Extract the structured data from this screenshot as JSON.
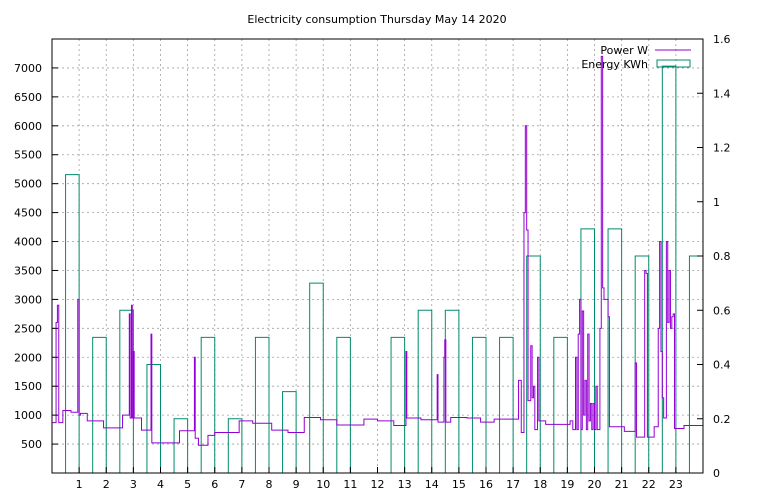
{
  "chart_data": {
    "type": "line",
    "title": "Electricity consumption Thursday May 14 2020",
    "xlabel": "",
    "ylabel": "",
    "y2label": "",
    "xlim": [
      0,
      24
    ],
    "ylim": [
      0,
      7500
    ],
    "y2lim": [
      0,
      1.6
    ],
    "x_ticks": [
      1,
      2,
      3,
      4,
      5,
      6,
      7,
      8,
      9,
      10,
      11,
      12,
      13,
      14,
      15,
      16,
      17,
      18,
      19,
      20,
      21,
      22,
      23
    ],
    "y_ticks": [
      500,
      1000,
      1500,
      2000,
      2500,
      3000,
      3500,
      4000,
      4500,
      5000,
      5500,
      6000,
      6500,
      7000
    ],
    "y2_ticks": [
      0,
      0.2,
      0.4,
      0.6,
      0.8,
      1,
      1.2,
      1.4,
      1.6
    ],
    "grid": true,
    "legend_position": "top-right",
    "series": [
      {
        "name": "Power W",
        "color": "#9400d3",
        "axis": "left",
        "points": [
          [
            0,
            870
          ],
          [
            0.15,
            870
          ],
          [
            0.15,
            2600
          ],
          [
            0.2,
            2600
          ],
          [
            0.2,
            2900
          ],
          [
            0.25,
            2900
          ],
          [
            0.25,
            870
          ],
          [
            0.4,
            870
          ],
          [
            0.4,
            1080
          ],
          [
            0.7,
            1080
          ],
          [
            0.7,
            1050
          ],
          [
            0.95,
            1050
          ],
          [
            0.95,
            3000
          ],
          [
            1.0,
            3000
          ],
          [
            1.0,
            1000
          ],
          [
            1.05,
            1000
          ],
          [
            1.05,
            1030
          ],
          [
            1.3,
            1030
          ],
          [
            1.3,
            900
          ],
          [
            1.9,
            900
          ],
          [
            1.9,
            780
          ],
          [
            2.6,
            780
          ],
          [
            2.6,
            1000
          ],
          [
            2.85,
            1000
          ],
          [
            2.85,
            2750
          ],
          [
            2.88,
            2750
          ],
          [
            2.88,
            950
          ],
          [
            2.93,
            950
          ],
          [
            2.93,
            2900
          ],
          [
            2.96,
            2900
          ],
          [
            2.96,
            950
          ],
          [
            3.0,
            950
          ],
          [
            3.0,
            2100
          ],
          [
            3.03,
            2100
          ],
          [
            3.03,
            950
          ],
          [
            3.3,
            950
          ],
          [
            3.3,
            740
          ],
          [
            3.65,
            740
          ],
          [
            3.65,
            2400
          ],
          [
            3.68,
            2400
          ],
          [
            3.68,
            520
          ],
          [
            4.7,
            520
          ],
          [
            4.7,
            730
          ],
          [
            5.25,
            730
          ],
          [
            5.25,
            2000
          ],
          [
            5.28,
            2000
          ],
          [
            5.28,
            600
          ],
          [
            5.4,
            600
          ],
          [
            5.4,
            480
          ],
          [
            5.75,
            480
          ],
          [
            5.75,
            650
          ],
          [
            6.0,
            650
          ],
          [
            6.0,
            700
          ],
          [
            6.9,
            700
          ],
          [
            6.9,
            900
          ],
          [
            7.4,
            900
          ],
          [
            7.4,
            860
          ],
          [
            8.1,
            860
          ],
          [
            8.1,
            740
          ],
          [
            8.7,
            740
          ],
          [
            8.7,
            700
          ],
          [
            9.3,
            700
          ],
          [
            9.3,
            960
          ],
          [
            9.9,
            960
          ],
          [
            9.9,
            920
          ],
          [
            10.5,
            920
          ],
          [
            10.5,
            830
          ],
          [
            11.5,
            830
          ],
          [
            11.5,
            930
          ],
          [
            12.0,
            930
          ],
          [
            12.0,
            900
          ],
          [
            12.6,
            900
          ],
          [
            12.6,
            820
          ],
          [
            13.05,
            820
          ],
          [
            13.05,
            2100
          ],
          [
            13.08,
            2100
          ],
          [
            13.08,
            950
          ],
          [
            13.6,
            950
          ],
          [
            13.6,
            920
          ],
          [
            14.2,
            920
          ],
          [
            14.2,
            1700
          ],
          [
            14.23,
            1700
          ],
          [
            14.23,
            880
          ],
          [
            14.45,
            880
          ],
          [
            14.45,
            2000
          ],
          [
            14.48,
            2000
          ],
          [
            14.48,
            2300
          ],
          [
            14.52,
            2300
          ],
          [
            14.52,
            880
          ],
          [
            14.7,
            880
          ],
          [
            14.7,
            960
          ],
          [
            15.3,
            960
          ],
          [
            15.3,
            950
          ],
          [
            15.8,
            950
          ],
          [
            15.8,
            880
          ],
          [
            16.3,
            880
          ],
          [
            16.3,
            930
          ],
          [
            17.2,
            930
          ],
          [
            17.2,
            1600
          ],
          [
            17.3,
            1600
          ],
          [
            17.3,
            700
          ],
          [
            17.4,
            700
          ],
          [
            17.4,
            4500
          ],
          [
            17.45,
            4500
          ],
          [
            17.45,
            6000
          ],
          [
            17.5,
            6000
          ],
          [
            17.5,
            4200
          ],
          [
            17.55,
            4200
          ],
          [
            17.55,
            1250
          ],
          [
            17.65,
            1250
          ],
          [
            17.65,
            2200
          ],
          [
            17.7,
            2200
          ],
          [
            17.7,
            1300
          ],
          [
            17.75,
            1300
          ],
          [
            17.75,
            1500
          ],
          [
            17.8,
            1500
          ],
          [
            17.8,
            750
          ],
          [
            17.9,
            750
          ],
          [
            17.9,
            2000
          ],
          [
            17.95,
            2000
          ],
          [
            17.95,
            900
          ],
          [
            18.2,
            900
          ],
          [
            18.2,
            840
          ],
          [
            19.1,
            840
          ],
          [
            19.1,
            900
          ],
          [
            19.2,
            900
          ],
          [
            19.2,
            750
          ],
          [
            19.3,
            750
          ],
          [
            19.3,
            2000
          ],
          [
            19.35,
            2000
          ],
          [
            19.35,
            750
          ],
          [
            19.4,
            750
          ],
          [
            19.4,
            2400
          ],
          [
            19.45,
            2400
          ],
          [
            19.45,
            3000
          ],
          [
            19.5,
            3000
          ],
          [
            19.5,
            750
          ],
          [
            19.55,
            750
          ],
          [
            19.55,
            2800
          ],
          [
            19.6,
            2800
          ],
          [
            19.6,
            1000
          ],
          [
            19.65,
            1000
          ],
          [
            19.65,
            1600
          ],
          [
            19.7,
            1600
          ],
          [
            19.7,
            750
          ],
          [
            19.75,
            750
          ],
          [
            19.75,
            2400
          ],
          [
            19.8,
            2400
          ],
          [
            19.8,
            900
          ],
          [
            19.85,
            900
          ],
          [
            19.85,
            1200
          ],
          [
            19.9,
            1200
          ],
          [
            19.9,
            750
          ],
          [
            19.95,
            750
          ],
          [
            19.95,
            1200
          ],
          [
            20.0,
            1200
          ],
          [
            20.0,
            750
          ],
          [
            20.05,
            750
          ],
          [
            20.05,
            1500
          ],
          [
            20.1,
            1500
          ],
          [
            20.1,
            750
          ],
          [
            20.2,
            750
          ],
          [
            20.2,
            2500
          ],
          [
            20.25,
            2500
          ],
          [
            20.25,
            7200
          ],
          [
            20.3,
            7200
          ],
          [
            20.3,
            3200
          ],
          [
            20.35,
            3200
          ],
          [
            20.35,
            3000
          ],
          [
            20.5,
            3000
          ],
          [
            20.5,
            2700
          ],
          [
            20.55,
            2700
          ],
          [
            20.55,
            800
          ],
          [
            21.1,
            800
          ],
          [
            21.1,
            720
          ],
          [
            21.5,
            720
          ],
          [
            21.5,
            1900
          ],
          [
            21.55,
            1900
          ],
          [
            21.55,
            620
          ],
          [
            21.85,
            620
          ],
          [
            21.85,
            3500
          ],
          [
            21.9,
            3500
          ],
          [
            21.9,
            3450
          ],
          [
            21.95,
            3450
          ],
          [
            21.95,
            620
          ],
          [
            22.2,
            620
          ],
          [
            22.2,
            800
          ],
          [
            22.35,
            800
          ],
          [
            22.35,
            2500
          ],
          [
            22.4,
            2500
          ],
          [
            22.4,
            4000
          ],
          [
            22.45,
            4000
          ],
          [
            22.45,
            2100
          ],
          [
            22.5,
            2100
          ],
          [
            22.5,
            1300
          ],
          [
            22.55,
            1300
          ],
          [
            22.55,
            950
          ],
          [
            22.65,
            950
          ],
          [
            22.65,
            4000
          ],
          [
            22.7,
            4000
          ],
          [
            22.7,
            2600
          ],
          [
            22.75,
            2600
          ],
          [
            22.75,
            3500
          ],
          [
            22.8,
            3500
          ],
          [
            22.8,
            2500
          ],
          [
            22.85,
            2500
          ],
          [
            22.85,
            2700
          ],
          [
            22.9,
            2700
          ],
          [
            22.9,
            2750
          ],
          [
            22.95,
            2750
          ],
          [
            22.95,
            770
          ],
          [
            23.3,
            770
          ],
          [
            23.3,
            820
          ],
          [
            24.0,
            820
          ]
        ]
      },
      {
        "name": "Energy KWh",
        "color": "#008b6b",
        "axis": "right",
        "hours": [
          0,
          1,
          2,
          3,
          4,
          5,
          6,
          7,
          8,
          9,
          10,
          11,
          12,
          13,
          14,
          15,
          16,
          17,
          18,
          19,
          20,
          21,
          22,
          23
        ],
        "values": [
          1.1,
          0.5,
          0.6,
          0.4,
          0.2,
          0.5,
          0.2,
          0.5,
          0.3,
          0.7,
          0.5,
          0,
          0.5,
          0.6,
          0.6,
          0.5,
          0.5,
          0.8,
          0.5,
          0.9,
          0.9,
          0.8,
          1.5,
          0.8
        ]
      }
    ]
  }
}
